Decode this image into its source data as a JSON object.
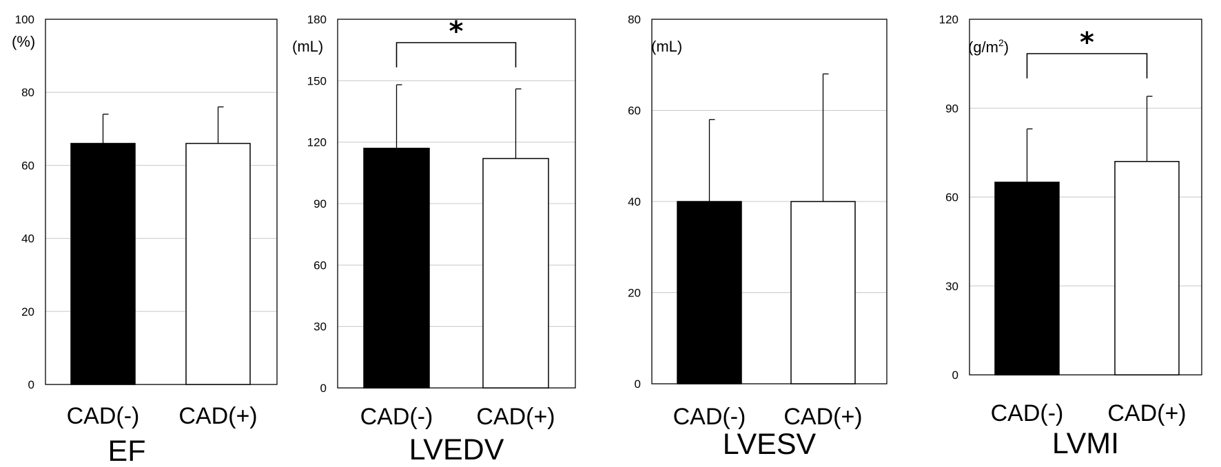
{
  "chart_data": [
    {
      "type": "bar",
      "title": "EF",
      "ylabel": "(%)",
      "ylim": [
        0,
        100
      ],
      "yticks": [
        0,
        20,
        40,
        60,
        80,
        100
      ],
      "categories": [
        "CAD(-)",
        "CAD(+)"
      ],
      "values": [
        66,
        66
      ],
      "errors": [
        8,
        10
      ],
      "bar_fills": [
        "#000000",
        "#ffffff"
      ],
      "grid": true,
      "significance": null
    },
    {
      "type": "bar",
      "title": "LVEDV",
      "ylabel": "(mL)",
      "ylim": [
        0,
        180
      ],
      "yticks": [
        0,
        30,
        60,
        90,
        120,
        150,
        180
      ],
      "categories": [
        "CAD(-)",
        "CAD(+)"
      ],
      "values": [
        117,
        112
      ],
      "errors": [
        31,
        34
      ],
      "bar_fills": [
        "#000000",
        "#ffffff"
      ],
      "grid": true,
      "significance": "*"
    },
    {
      "type": "bar",
      "title": "LVESV",
      "ylabel": "(mL)",
      "ylim": [
        0,
        80
      ],
      "yticks": [
        0,
        20,
        40,
        60,
        80
      ],
      "categories": [
        "CAD(-)",
        "CAD(+)"
      ],
      "values": [
        40,
        40
      ],
      "errors": [
        18,
        28
      ],
      "bar_fills": [
        "#000000",
        "#ffffff"
      ],
      "grid": true,
      "significance": null
    },
    {
      "type": "bar",
      "title": "LVMI",
      "ylabel": "(g/m2)",
      "ylim": [
        0,
        120
      ],
      "yticks": [
        0,
        30,
        60,
        90,
        120
      ],
      "categories": [
        "CAD(-)",
        "CAD(+)"
      ],
      "values": [
        65,
        72
      ],
      "errors": [
        18,
        22
      ],
      "bar_fills": [
        "#000000",
        "#ffffff"
      ],
      "grid": true,
      "significance": "*"
    }
  ]
}
